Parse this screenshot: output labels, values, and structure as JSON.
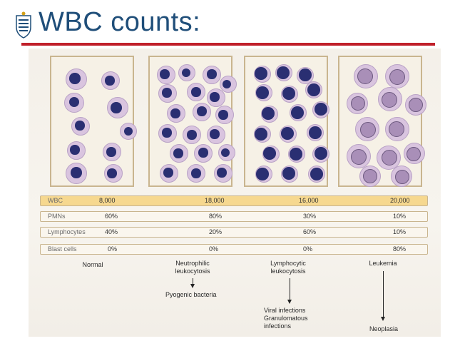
{
  "slide": {
    "title": "WBC counts:"
  },
  "table": {
    "columns": [
      "Normal",
      "Neutrophilic leukocytosis",
      "Lymphocytic leukocytosis",
      "Leukemia"
    ],
    "rows": [
      {
        "label": "WBC",
        "values": [
          "8,000",
          "18,000",
          "16,000",
          "20,000"
        ]
      },
      {
        "label": "PMNs",
        "values": [
          "60%",
          "80%",
          "30%",
          "10%"
        ]
      },
      {
        "label": "Lymphocytes",
        "values": [
          "40%",
          "20%",
          "60%",
          "10%"
        ]
      },
      {
        "label": "Blast cells",
        "values": [
          "0%",
          "0%",
          "0%",
          "80%"
        ]
      }
    ]
  },
  "captions": {
    "normal": "Normal",
    "neutrophilic_1": "Neutrophilic",
    "neutrophilic_2": "leukocytosis",
    "lymphocytic_1": "Lymphocytic",
    "lymphocytic_2": "leukocytosis",
    "leukemia": "Leukemia"
  },
  "causes": {
    "neutrophilic": "Pyogenic bacteria",
    "lymphocytic_1": "Viral infections",
    "lymphocytic_2": "Granulomatous",
    "lymphocytic_3": "infections",
    "leukemia": "Neoplasia"
  },
  "colors": {
    "title": "#1f4e79",
    "rule": "#c0202a",
    "wbc_row": "#f6d88f",
    "nucleus": "#2a2f72",
    "cytoplasm": "#d9c4df"
  }
}
